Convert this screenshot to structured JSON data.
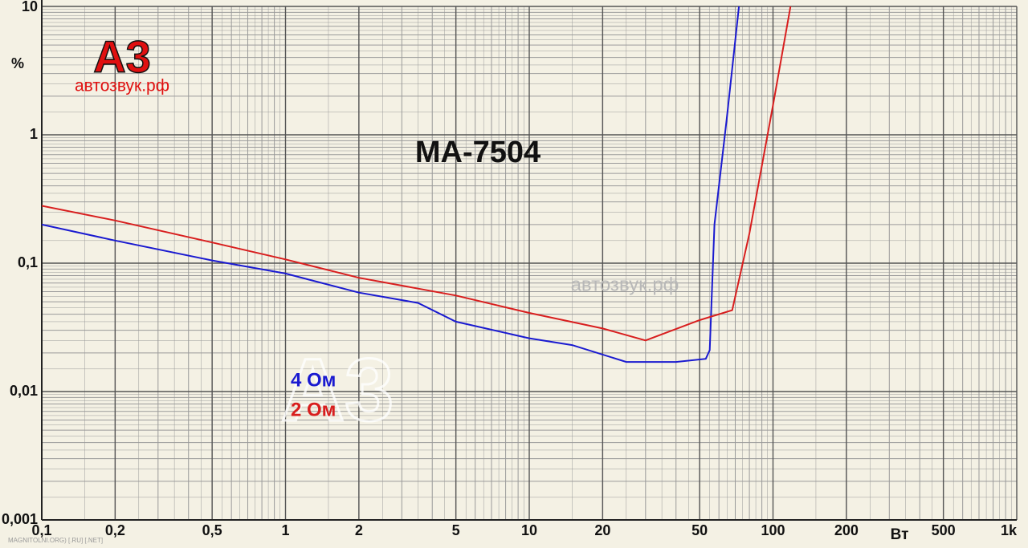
{
  "chart_data": {
    "type": "line",
    "title": "MA-7504",
    "y_label": "%",
    "x_label": "Вт",
    "annotations": [
      "А3",
      "автозвук.рф",
      "автозвук.рф",
      "MAGNITOLNI.ORG) [.RU] [.NET]"
    ],
    "log_x": true,
    "log_y": true,
    "grid": true,
    "minor_grid": true,
    "xlim": [
      0.1,
      1000
    ],
    "ylim": [
      0.001,
      10
    ],
    "xticks": [
      {
        "value": 0.1,
        "label": "0,1"
      },
      {
        "value": 0.2,
        "label": "0,2"
      },
      {
        "value": 0.5,
        "label": "0,5"
      },
      1,
      2,
      5,
      10,
      20,
      50,
      100,
      200,
      500,
      {
        "value": 1000,
        "label": "1k"
      }
    ],
    "yticks": [
      {
        "value": 0.001,
        "label": "0,001"
      },
      {
        "value": 0.01,
        "label": "0,01"
      },
      {
        "value": 0.1,
        "label": "0,1"
      },
      1,
      10
    ],
    "series": [
      {
        "name": "4 Ом",
        "color": "#1a1ad0",
        "x": [
          0.1,
          0.2,
          0.5,
          1,
          2,
          3.5,
          5,
          10,
          15,
          25,
          40,
          53,
          55,
          57.5,
          64.5,
          72.5
        ],
        "values": [
          0.2,
          0.15,
          0.105,
          0.083,
          0.059,
          0.049,
          0.035,
          0.026,
          0.023,
          0.017,
          0.017,
          0.018,
          0.021,
          0.2,
          1.3,
          10
        ]
      },
      {
        "name": "2 Ом",
        "color": "#d81e1e",
        "x": [
          0.1,
          0.2,
          0.5,
          1,
          2,
          5,
          10,
          20,
          30,
          50,
          68,
          80,
          100,
          118
        ],
        "values": [
          0.28,
          0.215,
          0.145,
          0.107,
          0.077,
          0.056,
          0.041,
          0.031,
          0.025,
          0.036,
          0.043,
          0.17,
          1.7,
          10
        ]
      }
    ]
  }
}
